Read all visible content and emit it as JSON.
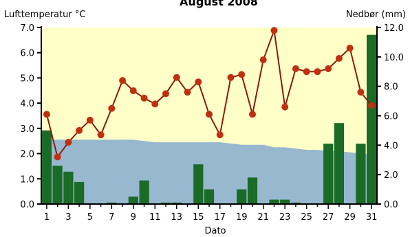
{
  "chart_data": {
    "type": "bar",
    "title": "August 2008",
    "xlabel": "Dato",
    "ylabel_left": "Lufttemperatur °C",
    "ylabel_right": "Nedbør (mm)",
    "ylim_left": [
      0,
      7
    ],
    "ylim_right": [
      0,
      12
    ],
    "y_ticks_left": [
      "0.0",
      "1.0",
      "2.0",
      "3.0",
      "4.0",
      "5.0",
      "6.0",
      "7.0"
    ],
    "y_ticks_right": [
      "0.0",
      "2.0",
      "4.0",
      "6.0",
      "8.0",
      "10.0",
      "12.0"
    ],
    "x_tick_labels": [
      "1",
      "3",
      "5",
      "7",
      "9",
      "11",
      "13",
      "15",
      "17",
      "19",
      "21",
      "23",
      "25",
      "27",
      "29",
      "31"
    ],
    "days": [
      1,
      2,
      3,
      4,
      5,
      6,
      7,
      8,
      9,
      10,
      11,
      12,
      13,
      14,
      15,
      16,
      17,
      18,
      19,
      20,
      21,
      22,
      23,
      24,
      25,
      26,
      27,
      28,
      29,
      30,
      31
    ],
    "grid": false,
    "colors": {
      "background": "#ffffc8",
      "area": "#98b8d0",
      "bars": "#1a6b26",
      "line": "#8b1a0a",
      "marker": "#c03010"
    },
    "series": [
      {
        "kind": "area",
        "axis": "left",
        "values": [
          2.55,
          2.55,
          2.55,
          2.55,
          2.55,
          2.55,
          2.55,
          2.55,
          2.55,
          2.5,
          2.45,
          2.45,
          2.45,
          2.45,
          2.45,
          2.45,
          2.45,
          2.4,
          2.35,
          2.35,
          2.35,
          2.25,
          2.25,
          2.2,
          2.15,
          2.15,
          2.1,
          2.1,
          2.05,
          2.0,
          1.95
        ]
      },
      {
        "kind": "bar",
        "axis": "right",
        "values": [
          5.0,
          2.6,
          2.2,
          1.5,
          0,
          0,
          0.1,
          0,
          0.5,
          1.6,
          0,
          0.1,
          0.1,
          0,
          2.7,
          1.0,
          0,
          0,
          1.0,
          1.8,
          0,
          0.3,
          0.3,
          0.1,
          0,
          0,
          4.1,
          5.5,
          0,
          4.1,
          11.5
        ]
      },
      {
        "kind": "line",
        "axis": "right",
        "values": [
          6.1,
          3.2,
          4.2,
          5.0,
          5.7,
          4.7,
          6.5,
          8.4,
          7.7,
          7.2,
          6.8,
          7.5,
          8.6,
          7.6,
          8.3,
          6.1,
          4.7,
          8.6,
          8.8,
          6.1,
          9.8,
          11.8,
          6.6,
          9.2,
          9.0,
          9.0,
          9.2,
          9.9,
          10.6,
          7.6,
          6.7
        ]
      }
    ]
  }
}
